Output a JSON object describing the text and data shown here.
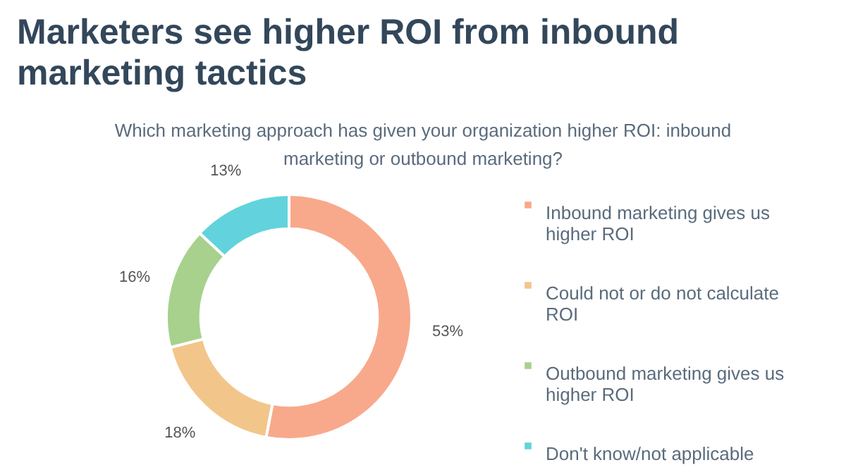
{
  "chart_data": {
    "type": "donut",
    "title": "Marketers see higher ROI from inbound marketing tactics",
    "subtitle": "Which marketing approach has given your organization higher ROI: inbound marketing or outbound marketing?",
    "categories": [
      "Inbound marketing gives us higher ROI",
      "Could not or do not calculate ROI",
      "Outbound marketing gives us higher ROI",
      "Don't know/not applicable"
    ],
    "values": [
      53,
      18,
      16,
      13
    ],
    "colors": [
      "#f8a98b",
      "#f2c68a",
      "#a8d18d",
      "#62d3dc"
    ],
    "value_labels": [
      "53%",
      "18%",
      "16%",
      "13%"
    ],
    "legend": "right"
  }
}
